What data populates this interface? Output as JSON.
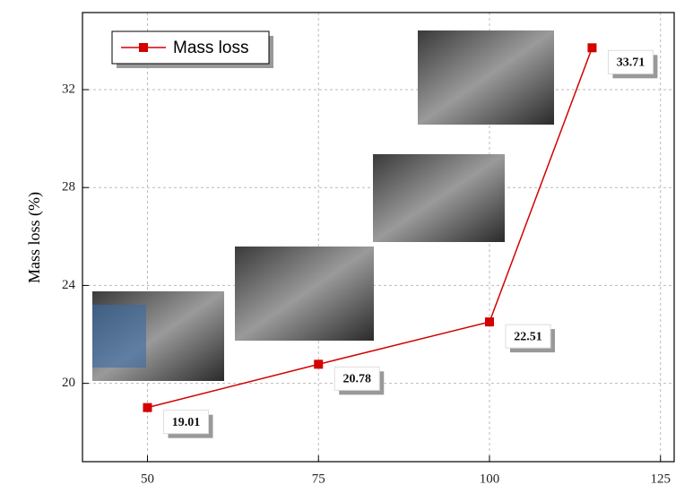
{
  "chart_data": {
    "type": "line",
    "y_label": "Mass loss (%)",
    "x": [
      50,
      75,
      100,
      115
    ],
    "series": [
      {
        "name": "Mass loss",
        "color": "#d40000",
        "values": [
          19.01,
          20.78,
          22.51,
          33.71
        ]
      }
    ],
    "xlim": [
      40.5,
      127
    ],
    "xticks": [
      50,
      75,
      100,
      125
    ],
    "ylim": [
      16.8,
      35.15
    ],
    "yticks": [
      20,
      24,
      28,
      32
    ],
    "grid": true,
    "legend": "upper left"
  }
}
